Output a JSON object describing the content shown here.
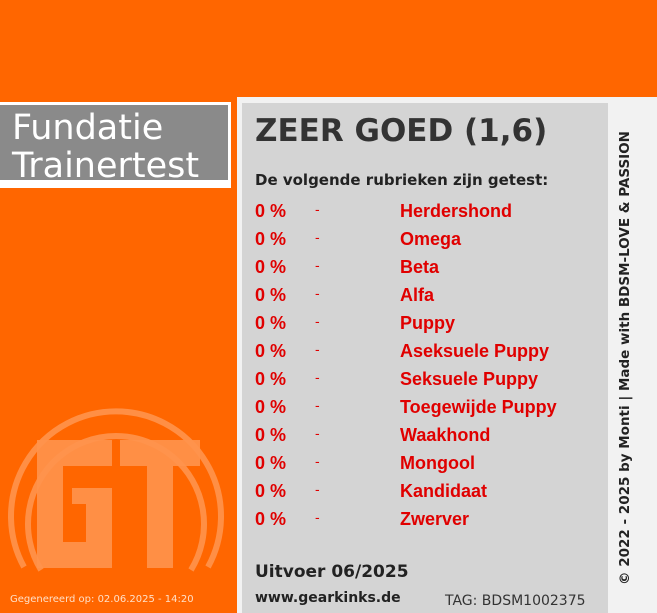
{
  "header": {
    "title_line1": "Fundatie",
    "title_line2": "Trainertest"
  },
  "result": {
    "rating": "ZEER GOED (1,6)",
    "subtitle": "De volgende rubrieken zijn getest:",
    "rows": [
      {
        "percent": "0 %",
        "separator": "-",
        "category": "Herdershond"
      },
      {
        "percent": "0 %",
        "separator": "-",
        "category": "Omega"
      },
      {
        "percent": "0 %",
        "separator": "-",
        "category": "Beta"
      },
      {
        "percent": "0 %",
        "separator": "-",
        "category": "Alfa"
      },
      {
        "percent": "0 %",
        "separator": "-",
        "category": "Puppy"
      },
      {
        "percent": "0 %",
        "separator": "-",
        "category": "Aseksuele Puppy"
      },
      {
        "percent": "0 %",
        "separator": "-",
        "category": "Seksuele Puppy"
      },
      {
        "percent": "0 %",
        "separator": "-",
        "category": "Toegewijde Puppy"
      },
      {
        "percent": "0 %",
        "separator": "-",
        "category": "Waakhond"
      },
      {
        "percent": "0 %",
        "separator": "-",
        "category": "Mongool"
      },
      {
        "percent": "0 %",
        "separator": "-",
        "category": "Kandidaat"
      },
      {
        "percent": "0 %",
        "separator": "-",
        "category": "Zwerver"
      }
    ],
    "export": "Uitvoer 06/2025",
    "website": "www.gearkinks.de",
    "tag": "TAG: BDSM1002375"
  },
  "footer": {
    "generated": "Gegenereerd op: 02.06.2025 - 14:20"
  },
  "side_credit": "© 2022 - 2025 by Monti | Made with BDSM-LOVE & PASSION",
  "colors": {
    "accent": "#ff6600",
    "title_bg": "#8a8a8a",
    "panel_bg": "#d4d4d4",
    "row_text": "#e00000"
  },
  "icons": {
    "logo": "gt-logo"
  }
}
